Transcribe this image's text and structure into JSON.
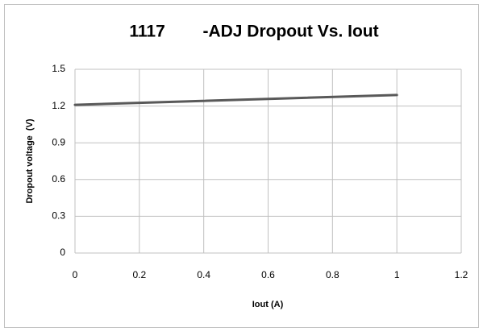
{
  "chart_data": {
    "type": "line",
    "title": "1117        -ADJ Dropout Vs. Iout",
    "x_label": "Iout (A)",
    "y_label": "Dropout voltage  (V)",
    "x": [
      0,
      1
    ],
    "series": [
      {
        "color": "#595959",
        "values": [
          1.21,
          1.29
        ]
      }
    ],
    "xlim": [
      0,
      1.2
    ],
    "xticks": [
      0,
      0.2,
      0.4,
      0.6,
      0.8,
      1,
      1.2
    ],
    "ylim": [
      0,
      1.5
    ],
    "yticks": [
      0,
      0.3,
      0.6,
      0.9,
      1.2,
      1.5
    ],
    "grid": true
  }
}
